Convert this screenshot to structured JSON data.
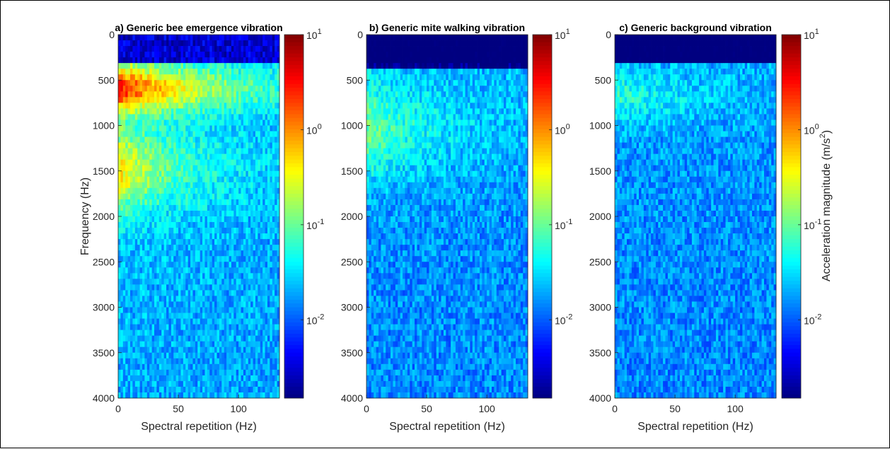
{
  "chart_data": [
    {
      "type": "heatmap",
      "title": "a) Generic bee emergence vibration",
      "xlabel": "Spectral repetition (Hz)",
      "ylabel": "Frequency (Hz)",
      "xlim": [
        0,
        134
      ],
      "ylim": [
        0,
        4000
      ],
      "y_reversed": true,
      "xticks": [
        0,
        50,
        100
      ],
      "yticks": [
        0,
        500,
        1000,
        1500,
        2000,
        2500,
        3000,
        3500,
        4000
      ],
      "colorbar": {
        "scale": "log",
        "range": [
          0.0015,
          10
        ],
        "tick_bases": [
          "10",
          "10",
          "10",
          "10"
        ],
        "tick_exponents": [
          "1",
          "0",
          "-1",
          "-2"
        ],
        "tick_values": [
          10,
          1,
          0.1,
          0.01
        ]
      },
      "features": "Strong peak (~3-6 m/s^2) around 400-800 Hz at 0-60 Hz repetition; secondary energy 1200-1800 Hz; low (~0.003 m/s^2) band below 300 Hz; decaying toward high frequency and high repetition"
    },
    {
      "type": "heatmap",
      "title": "b) Generic mite walking vibration",
      "xlabel": "Spectral repetition (Hz)",
      "ylabel": "",
      "xlim": [
        0,
        134
      ],
      "ylim": [
        0,
        4000
      ],
      "y_reversed": true,
      "xticks": [
        0,
        50,
        100
      ],
      "yticks": [
        0,
        500,
        1000,
        1500,
        2000,
        2500,
        3000,
        3500,
        4000
      ],
      "colorbar": {
        "scale": "log",
        "range": [
          0.0015,
          10
        ],
        "tick_bases": [
          "10",
          "10",
          "10",
          "10"
        ],
        "tick_exponents": [
          "1",
          "0",
          "-1",
          "-2"
        ],
        "tick_values": [
          10,
          1,
          0.1,
          0.01
        ]
      },
      "features": "Near-zero band 0-400 Hz; moderate energy (~0.05-0.1 m/s^2) 500-1500 Hz at low repetition; broadband ~0.01 m/s^2 elsewhere"
    },
    {
      "type": "heatmap",
      "title": "c) Generic background vibration",
      "xlabel": "Spectral repetition (Hz)",
      "ylabel": "",
      "xlim": [
        0,
        134
      ],
      "ylim": [
        0,
        4000
      ],
      "y_reversed": true,
      "xticks": [
        0,
        50,
        100
      ],
      "yticks": [
        0,
        500,
        1000,
        1500,
        2000,
        2500,
        3000,
        3500,
        4000
      ],
      "colorbar": {
        "scale": "log",
        "range": [
          0.0015,
          10
        ],
        "tick_bases": [
          "10",
          "10",
          "10",
          "10"
        ],
        "tick_exponents": [
          "1",
          "0",
          "-1",
          "-2"
        ],
        "tick_values": [
          10,
          1,
          0.1,
          0.01
        ]
      },
      "colorbar_label": "Acceleration magnitude (m/s",
      "colorbar_label_sup": "2",
      "colorbar_label_end": ")",
      "features": "Near-zero band 0-350 Hz; weak energy (~0.03 m/s^2) 500-900 Hz at low repetition; broadband ~0.01 m/s^2 elsewhere"
    }
  ],
  "colors": {
    "colormap": "jet",
    "frame": "#000000",
    "text": "#262626"
  }
}
